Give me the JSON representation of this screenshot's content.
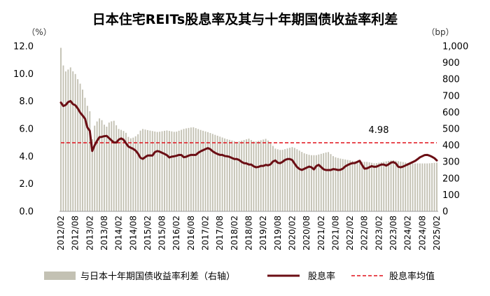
{
  "chart_data": {
    "type": "bar+line",
    "title": "日本住宅REITs股息率及其与十年期国债收益率利差",
    "y_left_unit": "（%）",
    "y_right_unit": "（bp）",
    "y_left_lim": [
      0,
      12
    ],
    "y_left_ticks": [
      "0.0",
      "2.0",
      "4.0",
      "6.0",
      "8.0",
      "10.0",
      "12.0"
    ],
    "y_right_lim": [
      0,
      1000
    ],
    "y_right_ticks": [
      "0",
      "100",
      "200",
      "300",
      "400",
      "500",
      "600",
      "700",
      "800",
      "900",
      "1,000"
    ],
    "x_start": "2012/02",
    "x_end": "2025/02",
    "x_tick_labels": [
      "2012/02",
      "2012/08",
      "2013/02",
      "2013/08",
      "2014/02",
      "2014/08",
      "2015/02",
      "2015/08",
      "2016/02",
      "2016/08",
      "2017/02",
      "2017/08",
      "2018/02",
      "2018/08",
      "2019/02",
      "2019/08",
      "2020/02",
      "2020/08",
      "2021/02",
      "2021/08",
      "2022/02",
      "2022/08",
      "2023/02",
      "2023/08",
      "2024/02",
      "2024/08",
      "2025/02"
    ],
    "average_value": 4.98,
    "average_label": "4.98",
    "legend": {
      "spread": "与日本十年期国债收益率利差（右轴）",
      "yield": "股息率",
      "average": "股息率均值"
    },
    "colors": {
      "spread": "#c3c1b3",
      "yield": "#6b0e14",
      "average": "#e0101a"
    },
    "spread_anchors_bp": [
      [
        0,
        990
      ],
      [
        2,
        860
      ],
      [
        4,
        840
      ],
      [
        6,
        880
      ],
      [
        8,
        850
      ],
      [
        10,
        830
      ],
      [
        12,
        790
      ],
      [
        14,
        760
      ],
      [
        16,
        700
      ],
      [
        18,
        640
      ],
      [
        20,
        600
      ],
      [
        21,
        420
      ],
      [
        23,
        520
      ],
      [
        25,
        550
      ],
      [
        27,
        570
      ],
      [
        29,
        530
      ],
      [
        31,
        510
      ],
      [
        33,
        540
      ],
      [
        36,
        550
      ],
      [
        39,
        500
      ],
      [
        42,
        490
      ],
      [
        44,
        480
      ],
      [
        46,
        450
      ],
      [
        48,
        440
      ],
      [
        52,
        460
      ],
      [
        55,
        500
      ],
      [
        60,
        490
      ],
      [
        66,
        480
      ],
      [
        72,
        490
      ],
      [
        78,
        480
      ],
      [
        84,
        500
      ],
      [
        90,
        510
      ],
      [
        96,
        490
      ],
      [
        100,
        480
      ],
      [
        106,
        460
      ],
      [
        112,
        440
      ],
      [
        116,
        430
      ],
      [
        120,
        420
      ],
      [
        124,
        430
      ],
      [
        128,
        440
      ],
      [
        132,
        420
      ],
      [
        136,
        430
      ],
      [
        140,
        440
      ],
      [
        143,
        410
      ],
      [
        146,
        380
      ],
      [
        150,
        370
      ],
      [
        154,
        380
      ],
      [
        158,
        390
      ],
      [
        162,
        370
      ],
      [
        166,
        350
      ],
      [
        170,
        340
      ],
      [
        174,
        340
      ],
      [
        178,
        350
      ],
      [
        182,
        360
      ],
      [
        186,
        330
      ],
      [
        190,
        320
      ],
      [
        196,
        310
      ],
      [
        202,
        300
      ],
      [
        208,
        300
      ],
      [
        214,
        290
      ],
      [
        220,
        300
      ],
      [
        226,
        310
      ],
      [
        232,
        300
      ],
      [
        238,
        290
      ],
      [
        244,
        290
      ],
      [
        250,
        290
      ],
      [
        256,
        295
      ]
    ],
    "yield_anchors_pct": [
      [
        0,
        7.9
      ],
      [
        2,
        7.6
      ],
      [
        4,
        7.8
      ],
      [
        6,
        8.1
      ],
      [
        8,
        7.8
      ],
      [
        10,
        7.7
      ],
      [
        12,
        7.4
      ],
      [
        14,
        7.0
      ],
      [
        16,
        6.9
      ],
      [
        18,
        6.1
      ],
      [
        20,
        5.8
      ],
      [
        21,
        4.3
      ],
      [
        23,
        4.8
      ],
      [
        25,
        5.2
      ],
      [
        27,
        5.5
      ],
      [
        29,
        5.3
      ],
      [
        30,
        5.6
      ],
      [
        32,
        5.4
      ],
      [
        34,
        5.2
      ],
      [
        36,
        5.0
      ],
      [
        38,
        5.0
      ],
      [
        40,
        5.3
      ],
      [
        42,
        5.3
      ],
      [
        44,
        5.0
      ],
      [
        46,
        4.7
      ],
      [
        48,
        4.6
      ],
      [
        50,
        4.5
      ],
      [
        52,
        4.3
      ],
      [
        54,
        3.9
      ],
      [
        56,
        3.8
      ],
      [
        58,
        4.0
      ],
      [
        60,
        4.1
      ],
      [
        62,
        4.0
      ],
      [
        64,
        4.3
      ],
      [
        66,
        4.4
      ],
      [
        68,
        4.3
      ],
      [
        70,
        4.2
      ],
      [
        72,
        4.1
      ],
      [
        74,
        3.9
      ],
      [
        76,
        4.0
      ],
      [
        78,
        4.0
      ],
      [
        80,
        4.1
      ],
      [
        82,
        4.1
      ],
      [
        84,
        3.9
      ],
      [
        86,
        4.0
      ],
      [
        88,
        4.1
      ],
      [
        90,
        4.1
      ],
      [
        92,
        4.1
      ],
      [
        94,
        4.3
      ],
      [
        96,
        4.4
      ],
      [
        98,
        4.5
      ],
      [
        100,
        4.6
      ],
      [
        102,
        4.5
      ],
      [
        104,
        4.3
      ],
      [
        106,
        4.2
      ],
      [
        108,
        4.1
      ],
      [
        110,
        4.1
      ],
      [
        112,
        4.0
      ],
      [
        114,
        4.0
      ],
      [
        116,
        3.9
      ],
      [
        118,
        3.8
      ],
      [
        120,
        3.8
      ],
      [
        122,
        3.7
      ],
      [
        124,
        3.5
      ],
      [
        126,
        3.5
      ],
      [
        128,
        3.4
      ],
      [
        130,
        3.4
      ],
      [
        132,
        3.2
      ],
      [
        134,
        3.2
      ],
      [
        136,
        3.3
      ],
      [
        138,
        3.3
      ],
      [
        140,
        3.4
      ],
      [
        142,
        3.3
      ],
      [
        144,
        3.6
      ],
      [
        146,
        3.7
      ],
      [
        148,
        3.5
      ],
      [
        150,
        3.5
      ],
      [
        152,
        3.7
      ],
      [
        154,
        3.8
      ],
      [
        156,
        3.8
      ],
      [
        158,
        3.7
      ],
      [
        160,
        3.3
      ],
      [
        162,
        3.1
      ],
      [
        164,
        3.0
      ],
      [
        166,
        3.1
      ],
      [
        168,
        3.2
      ],
      [
        170,
        3.3
      ],
      [
        172,
        3.0
      ],
      [
        174,
        3.3
      ],
      [
        176,
        3.4
      ],
      [
        178,
        3.1
      ],
      [
        180,
        3.0
      ],
      [
        182,
        3.0
      ],
      [
        184,
        3.0
      ],
      [
        186,
        3.1
      ],
      [
        188,
        3.0
      ],
      [
        190,
        3.0
      ],
      [
        192,
        3.1
      ],
      [
        194,
        3.3
      ],
      [
        196,
        3.4
      ],
      [
        198,
        3.5
      ],
      [
        200,
        3.5
      ],
      [
        202,
        3.6
      ],
      [
        204,
        3.7
      ],
      [
        206,
        3.1
      ],
      [
        208,
        3.1
      ],
      [
        210,
        3.2
      ],
      [
        212,
        3.3
      ],
      [
        214,
        3.2
      ],
      [
        216,
        3.3
      ],
      [
        218,
        3.4
      ],
      [
        220,
        3.4
      ],
      [
        222,
        3.3
      ],
      [
        224,
        3.5
      ],
      [
        226,
        3.6
      ],
      [
        228,
        3.5
      ],
      [
        230,
        3.2
      ],
      [
        232,
        3.2
      ],
      [
        234,
        3.3
      ],
      [
        236,
        3.4
      ],
      [
        238,
        3.5
      ],
      [
        240,
        3.6
      ],
      [
        242,
        3.7
      ],
      [
        244,
        3.9
      ],
      [
        246,
        4.0
      ],
      [
        248,
        4.1
      ],
      [
        250,
        4.1
      ],
      [
        252,
        4.0
      ],
      [
        254,
        3.9
      ],
      [
        256,
        3.7
      ]
    ]
  }
}
